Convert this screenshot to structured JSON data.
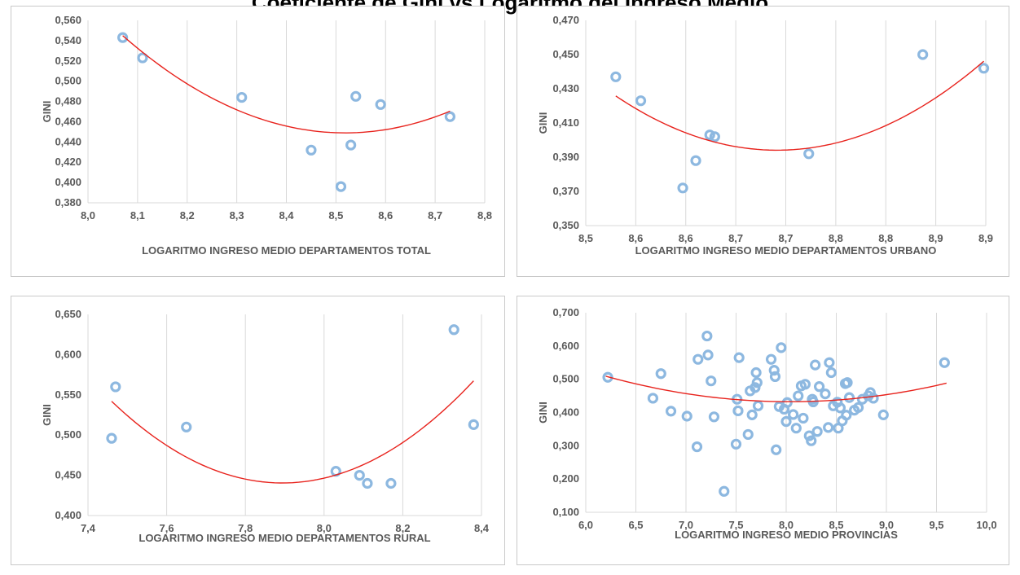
{
  "page": {
    "title": "Coeficiente de Gini vs Logaritmo del Ingreso Medio"
  },
  "chart_data": [
    {
      "id": "total",
      "type": "scatter",
      "xlabel": "LOGARITMO INGRESO MEDIO DEPARTAMENTOS TOTAL",
      "ylabel": "GINI",
      "xlim": [
        8.0,
        8.8
      ],
      "ylim": [
        0.38,
        0.56
      ],
      "xticks": [
        8.0,
        8.1,
        8.2,
        8.3,
        8.4,
        8.5,
        8.6,
        8.7,
        8.8
      ],
      "xtick_labels": [
        "8,0",
        "8,1",
        "8,2",
        "8,3",
        "8,4",
        "8,5",
        "8,6",
        "8,7",
        "8,8"
      ],
      "yticks": [
        0.38,
        0.4,
        0.42,
        0.44,
        0.46,
        0.48,
        0.5,
        0.52,
        0.54,
        0.56
      ],
      "ytick_labels": [
        "0,380",
        "0,400",
        "0,420",
        "0,440",
        "0,460",
        "0,480",
        "0,500",
        "0,520",
        "0,540",
        "0,560"
      ],
      "grid": "vertical",
      "trendline": "polynomial-2",
      "trend": {
        "x": [
          8.07,
          8.15,
          8.25,
          8.35,
          8.45,
          8.5,
          8.55,
          8.65,
          8.73
        ],
        "y": [
          0.543,
          0.514,
          0.486,
          0.465,
          0.451,
          0.447,
          0.447,
          0.456,
          0.473
        ]
      },
      "x": [
        8.07,
        8.11,
        8.31,
        8.45,
        8.51,
        8.53,
        8.54,
        8.59,
        8.73
      ],
      "y": [
        0.543,
        0.523,
        0.484,
        0.432,
        0.396,
        0.437,
        0.485,
        0.477,
        0.465
      ]
    },
    {
      "id": "urbano",
      "type": "scatter",
      "xlabel": "LOGARITMO INGRESO MEDIO DEPARTAMENTOS URBANO",
      "ylabel": "GINI",
      "xlim": [
        8.5,
        8.9
      ],
      "ylim": [
        0.35,
        0.47
      ],
      "xticks": [
        8.5,
        8.55,
        8.6,
        8.65,
        8.7,
        8.75,
        8.8,
        8.85,
        8.9
      ],
      "xtick_labels": [
        "8,5",
        "8,6",
        "8,6",
        "8,7",
        "8,7",
        "8,8",
        "8,8",
        "8,9",
        "8,9"
      ],
      "yticks": [
        0.35,
        0.37,
        0.39,
        0.41,
        0.43,
        0.45,
        0.47
      ],
      "ytick_labels": [
        "0,350",
        "0,370",
        "0,390",
        "0,410",
        "0,430",
        "0,450",
        "0,470"
      ],
      "grid": "vertical",
      "trendline": "polynomial-2",
      "trend": {
        "x": [
          8.53,
          8.6,
          8.65,
          8.7,
          8.75,
          8.8,
          8.85,
          8.898
        ],
        "y": [
          0.424,
          0.406,
          0.398,
          0.395,
          0.397,
          0.406,
          0.424,
          0.448
        ]
      },
      "x": [
        8.53,
        8.555,
        8.597,
        8.61,
        8.624,
        8.629,
        8.723,
        8.837,
        8.898
      ],
      "y": [
        0.437,
        0.423,
        0.372,
        0.388,
        0.403,
        0.402,
        0.392,
        0.45,
        0.442
      ]
    },
    {
      "id": "rural",
      "type": "scatter",
      "xlabel": "LOGARITMO INGRESO MEDIO DEPARTAMENTOS RURAL",
      "ylabel": "GINI",
      "xlim": [
        7.4,
        8.4
      ],
      "ylim": [
        0.4,
        0.65
      ],
      "xticks": [
        7.4,
        7.6,
        7.8,
        8.0,
        8.2,
        8.4
      ],
      "xtick_labels": [
        "7,4",
        "7,6",
        "7,8",
        "8,0",
        "8,2",
        "8,4"
      ],
      "yticks": [
        0.4,
        0.45,
        0.5,
        0.55,
        0.6,
        0.65
      ],
      "ytick_labels": [
        "0,400",
        "0,450",
        "0,500",
        "0,550",
        "0,600",
        "0,650"
      ],
      "grid": "vertical",
      "trendline": "polynomial-2",
      "trend": {
        "x": [
          7.46,
          7.6,
          7.75,
          7.9,
          8.05,
          8.2,
          8.3,
          8.38
        ],
        "y": [
          0.541,
          0.49,
          0.451,
          0.438,
          0.452,
          0.493,
          0.534,
          0.563
        ]
      },
      "x": [
        7.46,
        7.47,
        7.65,
        8.03,
        8.09,
        8.11,
        8.17,
        8.33,
        8.38
      ],
      "y": [
        0.496,
        0.56,
        0.51,
        0.455,
        0.45,
        0.44,
        0.44,
        0.631,
        0.513
      ]
    },
    {
      "id": "provincias",
      "type": "scatter",
      "xlabel": "LOGARITMO INGRESO MEDIO PROVINCIAS",
      "ylabel": "GINI",
      "xlim": [
        6.0,
        10.0
      ],
      "ylim": [
        0.1,
        0.7
      ],
      "xticks": [
        6.0,
        6.5,
        7.0,
        7.5,
        8.0,
        8.5,
        9.0,
        9.5,
        10.0
      ],
      "xtick_labels": [
        "6,0",
        "6,5",
        "7,0",
        "7,5",
        "8,0",
        "8,5",
        "9,0",
        "9,5",
        "10,0"
      ],
      "yticks": [
        0.1,
        0.2,
        0.3,
        0.4,
        0.5,
        0.6,
        0.7
      ],
      "ytick_labels": [
        "0,100",
        "0,200",
        "0,300",
        "0,400",
        "0,500",
        "0,600",
        "0,700"
      ],
      "grid": "vertical",
      "trendline": "polynomial-2",
      "trend": {
        "x": [
          6.2,
          6.8,
          7.4,
          8.0,
          8.6,
          9.2,
          9.6
        ],
        "y": [
          0.506,
          0.472,
          0.443,
          0.431,
          0.437,
          0.463,
          0.49
        ]
      },
      "x": [
        6.22,
        6.67,
        6.75,
        6.85,
        7.01,
        7.11,
        7.12,
        7.21,
        7.22,
        7.25,
        7.28,
        7.38,
        7.5,
        7.51,
        7.52,
        7.53,
        7.62,
        7.64,
        7.66,
        7.69,
        7.7,
        7.71,
        7.72,
        7.85,
        7.88,
        7.89,
        7.9,
        7.93,
        7.95,
        7.98,
        8.0,
        8.01,
        8.07,
        8.1,
        8.12,
        8.15,
        8.17,
        8.19,
        8.23,
        8.25,
        8.26,
        8.27,
        8.29,
        8.31,
        8.33,
        8.39,
        8.42,
        8.43,
        8.45,
        8.47,
        8.51,
        8.52,
        8.54,
        8.56,
        8.59,
        8.6,
        8.61,
        8.63,
        8.68,
        8.72,
        8.76,
        8.82,
        8.84,
        8.87,
        8.97,
        9.58
      ],
      "y": [
        0.506,
        0.443,
        0.517,
        0.404,
        0.389,
        0.297,
        0.56,
        0.63,
        0.573,
        0.495,
        0.387,
        0.163,
        0.305,
        0.44,
        0.405,
        0.565,
        0.334,
        0.465,
        0.393,
        0.475,
        0.52,
        0.49,
        0.42,
        0.56,
        0.527,
        0.508,
        0.288,
        0.418,
        0.595,
        0.41,
        0.373,
        0.43,
        0.394,
        0.353,
        0.45,
        0.48,
        0.383,
        0.485,
        0.33,
        0.315,
        0.44,
        0.432,
        0.543,
        0.343,
        0.478,
        0.456,
        0.355,
        0.55,
        0.52,
        0.42,
        0.431,
        0.353,
        0.414,
        0.375,
        0.487,
        0.392,
        0.49,
        0.445,
        0.407,
        0.415,
        0.44,
        0.45,
        0.46,
        0.443,
        0.393,
        0.55
      ]
    }
  ]
}
